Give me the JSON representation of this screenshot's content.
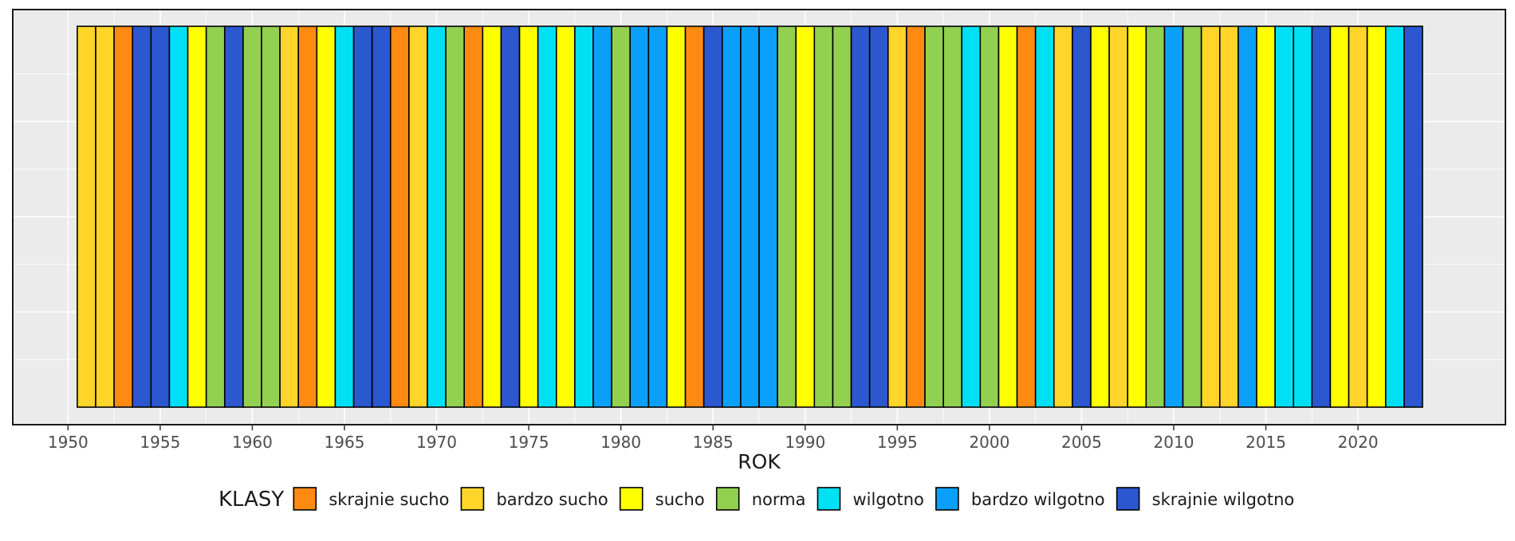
{
  "chart_data": {
    "type": "bar",
    "title": "",
    "xlabel": "ROK",
    "ylabel": "",
    "xlim": [
      1947,
      2028
    ],
    "x_ticks": [
      1950,
      1955,
      1960,
      1965,
      1970,
      1975,
      1980,
      1985,
      1990,
      1995,
      2000,
      2005,
      2010,
      2015,
      2020
    ],
    "grid": true,
    "legend": {
      "title": "KLASY",
      "placement": "bottom",
      "entries": [
        {
          "name": "skrajnie sucho",
          "color": "#FF8A12"
        },
        {
          "name": "bardzo sucho",
          "color": "#FFD52A"
        },
        {
          "name": "sucho",
          "color": "#FFFF00"
        },
        {
          "name": "norma",
          "color": "#92D050"
        },
        {
          "name": "wilgotno",
          "color": "#00E0F5"
        },
        {
          "name": "bardzo wilgotno",
          "color": "#0AA0FA"
        },
        {
          "name": "skrajnie wilgotno",
          "color": "#2B57CF"
        }
      ]
    },
    "years": [
      1951,
      1952,
      1953,
      1954,
      1955,
      1956,
      1957,
      1958,
      1959,
      1960,
      1961,
      1962,
      1963,
      1964,
      1965,
      1966,
      1967,
      1968,
      1969,
      1970,
      1971,
      1972,
      1973,
      1974,
      1975,
      1976,
      1977,
      1978,
      1979,
      1980,
      1981,
      1982,
      1983,
      1984,
      1985,
      1986,
      1987,
      1988,
      1989,
      1990,
      1991,
      1992,
      1993,
      1994,
      1995,
      1996,
      1997,
      1998,
      1999,
      2000,
      2001,
      2002,
      2003,
      2004,
      2005,
      2006,
      2007,
      2008,
      2009,
      2010,
      2011,
      2012,
      2013,
      2014,
      2015,
      2016,
      2017,
      2018,
      2019,
      2020,
      2021,
      2022,
      2023
    ],
    "classes": [
      "bardzo sucho",
      "bardzo sucho",
      "skrajnie sucho",
      "skrajnie wilgotno",
      "skrajnie wilgotno",
      "wilgotno",
      "sucho",
      "norma",
      "skrajnie wilgotno",
      "norma",
      "norma",
      "bardzo sucho",
      "skrajnie sucho",
      "sucho",
      "wilgotno",
      "skrajnie wilgotno",
      "skrajnie wilgotno",
      "skrajnie sucho",
      "bardzo sucho",
      "wilgotno",
      "norma",
      "skrajnie sucho",
      "sucho",
      "skrajnie wilgotno",
      "sucho",
      "wilgotno",
      "sucho",
      "wilgotno",
      "bardzo wilgotno",
      "norma",
      "bardzo wilgotno",
      "bardzo wilgotno",
      "sucho",
      "skrajnie sucho",
      "skrajnie wilgotno",
      "bardzo wilgotno",
      "bardzo wilgotno",
      "bardzo wilgotno",
      "norma",
      "sucho",
      "norma",
      "norma",
      "skrajnie wilgotno",
      "skrajnie wilgotno",
      "bardzo sucho",
      "skrajnie sucho",
      "norma",
      "norma",
      "wilgotno",
      "norma",
      "sucho",
      "skrajnie sucho",
      "wilgotno",
      "bardzo sucho",
      "skrajnie wilgotno",
      "sucho",
      "bardzo sucho",
      "sucho",
      "norma",
      "bardzo wilgotno",
      "norma",
      "bardzo sucho",
      "bardzo sucho",
      "bardzo wilgotno",
      "sucho",
      "wilgotno",
      "wilgotno",
      "skrajnie wilgotno",
      "sucho",
      "bardzo sucho",
      "sucho",
      "wilgotno",
      "skrajnie wilgotno"
    ]
  }
}
